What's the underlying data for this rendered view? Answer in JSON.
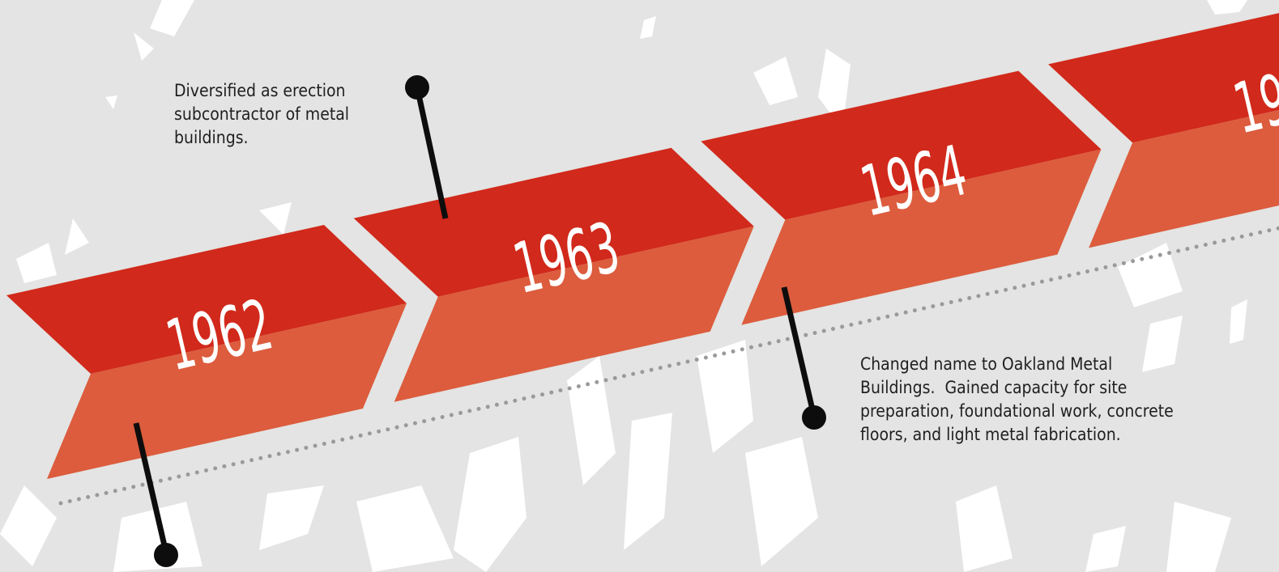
{
  "timeline": {
    "items": [
      {
        "year": "1962"
      },
      {
        "year": "1963",
        "description": "Diversified as erection subcontractor of metal buildings."
      },
      {
        "year": "1964",
        "description": "Changed name to Oakland Metal Buildings.  Gained capacity for site preparation, foundational work, concrete floors, and light metal fabrication."
      },
      {
        "year": "19"
      }
    ]
  }
}
